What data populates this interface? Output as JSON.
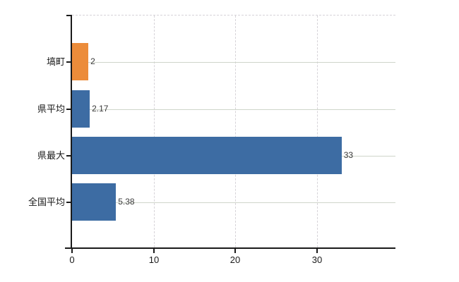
{
  "chart_data": {
    "type": "bar",
    "orientation": "horizontal",
    "title": "",
    "xlabel": "",
    "ylabel": "",
    "categories": [
      "塙町",
      "県平均",
      "県最大",
      "全国平均"
    ],
    "values": [
      2,
      2.17,
      33,
      5.38
    ],
    "value_labels": [
      "2",
      "2.17",
      "33",
      "5.38"
    ],
    "bar_colors": [
      "#ec8c3a",
      "#3d6ca3",
      "#3d6ca3",
      "#3d6ca3"
    ],
    "x_ticks": [
      0,
      10,
      20,
      30
    ],
    "x_tick_labels": [
      "0",
      "10",
      "20",
      "30"
    ],
    "xlim": [
      0,
      39.6
    ],
    "grid": true,
    "legend": false
  },
  "colors": {
    "bar_orange": "#ec8c3a",
    "bar_blue": "#3d6ca3",
    "axis": "#1a1a1a",
    "grid_horizontal": "#cfd5ca",
    "grid_vertical": "#d6d3d8",
    "value_label_text": "#3a3a3a",
    "axis_label_text": "#1a1a1a",
    "background": "#ffffff"
  }
}
